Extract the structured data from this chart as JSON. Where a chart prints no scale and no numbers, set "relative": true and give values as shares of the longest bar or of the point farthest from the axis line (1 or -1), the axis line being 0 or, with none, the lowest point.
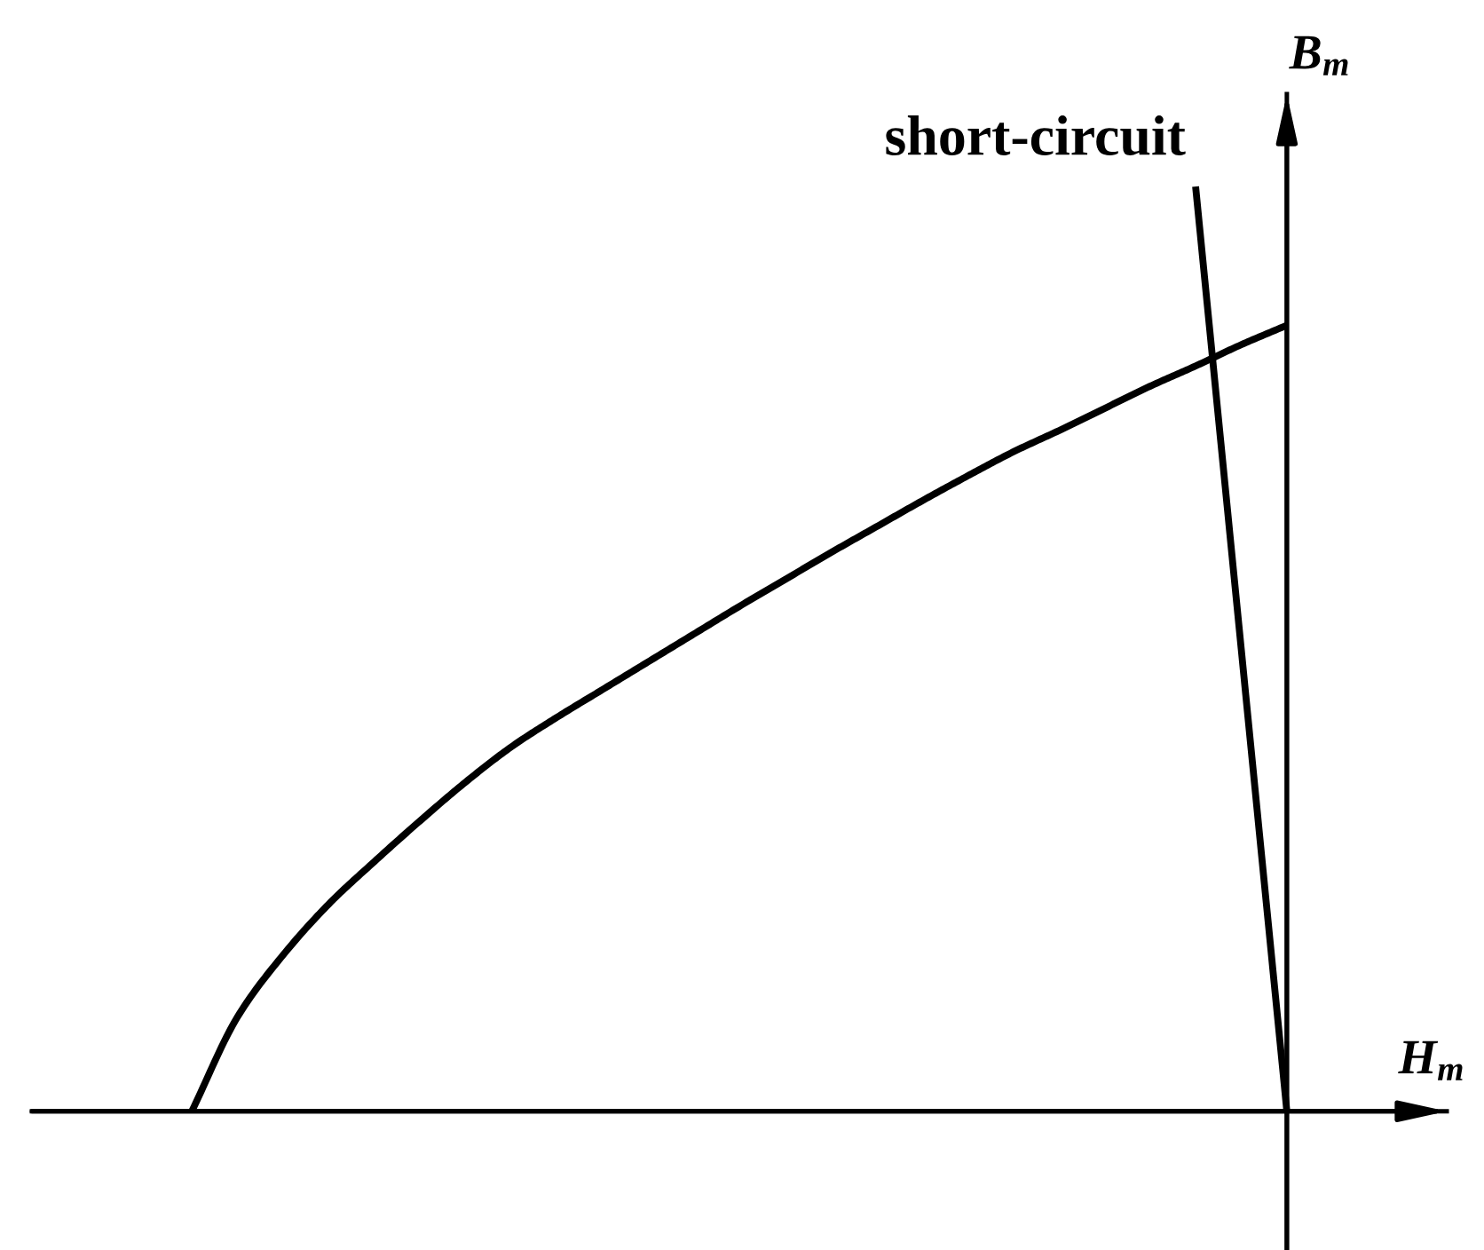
{
  "chart_data": {
    "type": "line",
    "relative": true,
    "xlabel": "H$_{m}$",
    "ylabel": "B$_{m}$",
    "marker": "none",
    "line_style": "solid",
    "categories": [
      null,
      null,
      null,
      null,
      null,
      null,
      null,
      null,
      null,
      null,
      null,
      null,
      null,
      null,
      null,
      null,
      null,
      null,
      null,
      null,
      null,
      null,
      null,
      null,
      null
    ],
    "series": [
      {
        "color": "#000000",
        "values": [
          0,
          0.102,
          0.169,
          0.224,
          0.27,
          0.314,
          0.356,
          0.394,
          0.426,
          0.456,
          0.486,
          0.516,
          0.546,
          0.575,
          0.604,
          0.632,
          0.66,
          0.687,
          0.713,
          0.736,
          0.76,
          0.784,
          0.806,
          0.829,
          0.85
        ]
      },
      {
        "name": "short-circuit",
        "color": "#000000",
        "values": [
          null,
          null,
          null,
          null,
          null,
          null,
          null,
          null,
          null,
          null,
          null,
          null,
          null,
          null,
          null,
          null,
          null,
          null,
          null,
          null,
          null,
          null,
          1,
          0.5,
          0
        ]
      }
    ]
  }
}
